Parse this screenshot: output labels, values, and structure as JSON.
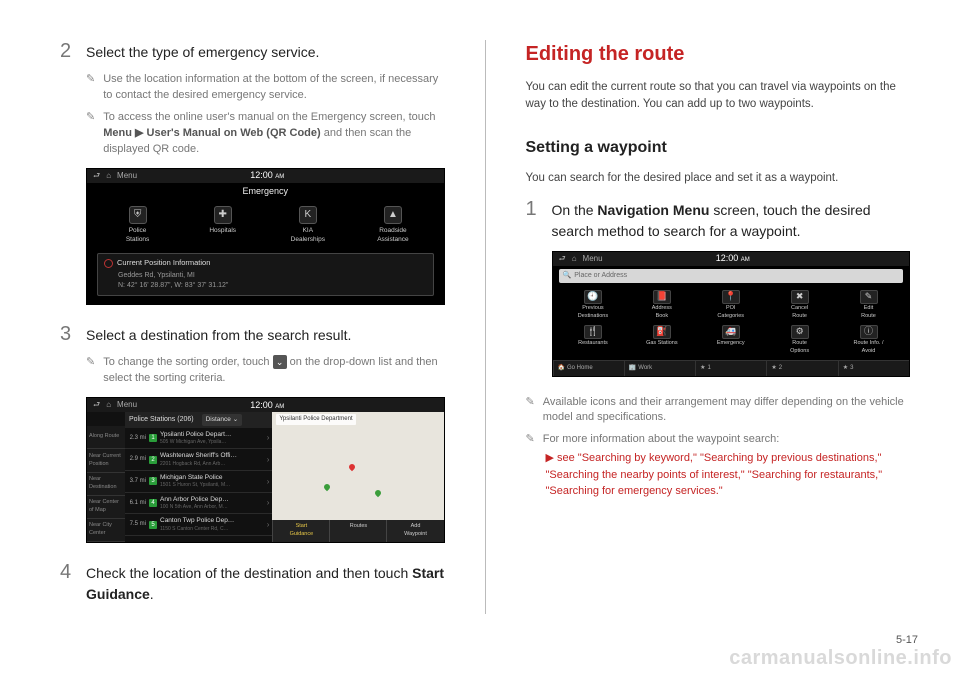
{
  "page_number": "5-17",
  "watermark": "carmanualsonline.info",
  "left": {
    "step2": {
      "num": "2",
      "text": "Select the type of emergency service.",
      "note1": "Use the location information at the bottom of the screen, if necessary to contact the desired emergency service.",
      "note2_pre": "To access the online user's manual on the Emergency screen, touch ",
      "note2_bold": "Menu ▶ User's Manual on Web (QR Code)",
      "note2_post": " and then scan the displayed QR code."
    },
    "scr1": {
      "topbar": {
        "back": "⮐",
        "home": "⌂",
        "menu": "Menu",
        "time": "12:00",
        "ampm": "AM"
      },
      "title": "Emergency",
      "icons": [
        {
          "glyph": "⛨",
          "label": "Police\nStations"
        },
        {
          "glyph": "✚",
          "label": "Hospitals"
        },
        {
          "glyph": "K",
          "label": "KIA\nDealerships"
        },
        {
          "glyph": "▲",
          "label": "Roadside\nAssistance"
        }
      ],
      "pos_title": "Current Position Information",
      "pos_line1": "Geddes Rd, Ypsilanti, MI",
      "pos_line2": "N: 42° 16' 28.87\", W: 83° 37' 31.12\""
    },
    "step3": {
      "num": "3",
      "text": "Select a destination from the search result.",
      "note_pre": "To change the sorting order, touch ",
      "note_post": " on the drop-down list and then select the sorting criteria."
    },
    "scr2": {
      "topbar": {
        "back": "⮐",
        "home": "⌂",
        "menu": "Menu",
        "time": "12:00",
        "ampm": "AM"
      },
      "header_title": "Police Stations (206)",
      "header_dd": "Distance",
      "sidetabs": [
        "Along Route",
        "Near Current Position",
        "Near Destination",
        "Near Center of Map",
        "Near City Center"
      ],
      "rows": [
        {
          "dist": "2.3 mi",
          "idx": "1",
          "nm": "Ypsilanti Police Depart…",
          "sub": "505 W Michigan Ave, Ypsila…"
        },
        {
          "dist": "2.9 mi",
          "idx": "2",
          "nm": "Washtenaw Sheriff's Offi…",
          "sub": "2201 Hogback Rd, Ann Arb…"
        },
        {
          "dist": "3.7 mi",
          "idx": "3",
          "nm": "Michigan State Police",
          "sub": "1501 S Huron St, Ypsilanti, M…"
        },
        {
          "dist": "6.1 mi",
          "idx": "4",
          "nm": "Ann Arbor Police Dep…",
          "sub": "100 N 5th Ave, Ann Arbor, M…"
        },
        {
          "dist": "7.5 mi",
          "idx": "5",
          "nm": "Canton Twp Police Dep…",
          "sub": "1150 S Canton Center Rd, C…"
        }
      ],
      "map_label": "Ypsilanti Police Department",
      "map_buttons": [
        {
          "label": "Start\nGuidance",
          "hl": true
        },
        {
          "label": "Routes",
          "hl": false
        },
        {
          "label": "Add\nWaypoint",
          "hl": false
        }
      ]
    },
    "step4": {
      "num": "4",
      "text_pre": "Check the location of the destination and then touch ",
      "text_bold": "Start Guidance",
      "text_post": "."
    }
  },
  "right": {
    "h1": "Editing the route",
    "intro": "You can edit the current route so that you can travel via waypoints on the way to the destination. You can add up to two waypoints.",
    "h2": "Setting a waypoint",
    "sub": "You can search for the desired place and set it as a waypoint.",
    "step1": {
      "num": "1",
      "text_pre": "On the ",
      "text_bold": "Navigation Menu",
      "text_post": " screen, touch the desired search method to search for a waypoint."
    },
    "scr3": {
      "topbar": {
        "back": "⮐",
        "home": "⌂",
        "menu": "Menu",
        "time": "12:00",
        "ampm": "AM"
      },
      "search_ph": "Place or Address",
      "items": [
        {
          "g": "🕘",
          "l": "Previous\nDestinations"
        },
        {
          "g": "📕",
          "l": "Address\nBook"
        },
        {
          "g": "📍",
          "l": "POI\nCategories"
        },
        {
          "g": "✖",
          "l": "Cancel\nRoute"
        },
        {
          "g": "✎",
          "l": "Edit\nRoute"
        },
        {
          "g": "🍴",
          "l": "Restaurants"
        },
        {
          "g": "⛽",
          "l": "Gas Stations"
        },
        {
          "g": "🚑",
          "l": "Emergency"
        },
        {
          "g": "⚙",
          "l": "Route\nOptions"
        },
        {
          "g": "ⓘ",
          "l": "Route Info. /\nAvoid"
        }
      ],
      "bottom": [
        {
          "i": "🏠",
          "l": "Go Home"
        },
        {
          "i": "🏢",
          "l": "Work"
        },
        {
          "i": "★",
          "l": "1"
        },
        {
          "i": "★",
          "l": "2"
        },
        {
          "i": "★",
          "l": "3"
        }
      ]
    },
    "note1": "Available icons and their arrangement may differ depending on the vehicle model and specifications.",
    "note2": "For more information about the waypoint search:",
    "link": "▶ see \"Searching by keyword,\" \"Searching by previous destinations,\" \"Searching the nearby points of interest,\" \"Searching for restaurants,\" \"Searching for emergency services.\""
  }
}
